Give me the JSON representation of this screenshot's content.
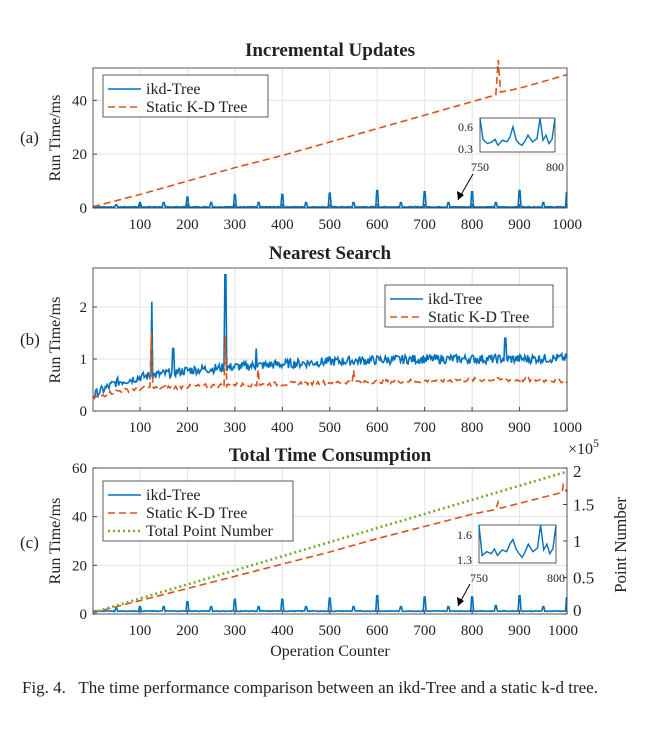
{
  "figure": {
    "caption_label": "Fig. 4.",
    "caption_text": "The time performance comparison between an ikd-Tree and a static k-d tree.",
    "xlabel": "Operation Counter"
  },
  "colors": {
    "ikd": "#0072BD",
    "static": "#D95319",
    "points": "#77AC30"
  },
  "chart_data": [
    {
      "type": "line",
      "panel": "(a)",
      "title": "Incremental Updates",
      "ylabel": "Run Time/ms",
      "xlim": [
        1,
        1000
      ],
      "ylim": [
        0,
        52
      ],
      "xticks": [
        100,
        200,
        300,
        400,
        500,
        600,
        700,
        800,
        900,
        1000
      ],
      "yticks": [
        0,
        20,
        40
      ],
      "grid": true,
      "legend": "top-left",
      "series": [
        {
          "name": "ikd-Tree",
          "style": "solid",
          "color": "#0072BD",
          "baseline": 0.4,
          "spikes": [
            [
              50,
              1.2
            ],
            [
              100,
              2
            ],
            [
              150,
              2
            ],
            [
              200,
              4
            ],
            [
              250,
              2
            ],
            [
              300,
              5
            ],
            [
              350,
              2
            ],
            [
              400,
              5
            ],
            [
              450,
              2
            ],
            [
              500,
              5.5
            ],
            [
              550,
              2
            ],
            [
              600,
              6.5
            ],
            [
              650,
              2
            ],
            [
              700,
              6
            ],
            [
              750,
              2
            ],
            [
              800,
              6
            ],
            [
              850,
              2
            ],
            [
              900,
              6.5
            ],
            [
              950,
              2
            ],
            [
              1000,
              6
            ]
          ]
        },
        {
          "name": "Static K-D Tree",
          "style": "dashed",
          "color": "#D95319",
          "x": [
            1,
            100,
            200,
            300,
            400,
            500,
            600,
            700,
            800,
            850,
            855,
            860,
            900,
            1000
          ],
          "y": [
            0.5,
            5,
            10,
            15,
            19.5,
            24.5,
            29.5,
            34.5,
            39.5,
            42,
            55,
            43,
            44.5,
            49.5
          ]
        }
      ],
      "inset": {
        "xlim": [
          750,
          800
        ],
        "yticks": [
          0.3,
          0.6
        ],
        "xticks": [
          750,
          800
        ],
        "x": [
          750,
          752,
          755,
          758,
          760,
          762,
          765,
          768,
          770,
          772,
          774,
          776,
          778,
          780,
          782,
          785,
          788,
          790,
          792,
          794,
          796,
          798,
          800
        ],
        "y": [
          0.7,
          0.45,
          0.4,
          0.42,
          0.45,
          0.38,
          0.44,
          0.42,
          0.48,
          0.6,
          0.45,
          0.4,
          0.38,
          0.43,
          0.5,
          0.42,
          0.46,
          0.7,
          0.44,
          0.5,
          0.4,
          0.45,
          0.7
        ]
      }
    },
    {
      "type": "line",
      "panel": "(b)",
      "title": "Nearest Search",
      "ylabel": "Run Time/ms",
      "xlim": [
        1,
        1000
      ],
      "ylim": [
        0,
        2.75
      ],
      "xticks": [
        100,
        200,
        300,
        400,
        500,
        600,
        700,
        800,
        900,
        1000
      ],
      "yticks": [
        0,
        1,
        2
      ],
      "grid": true,
      "legend": "top-right",
      "series": [
        {
          "name": "ikd-Tree",
          "style": "solid",
          "color": "#0072BD",
          "x": [
            1,
            50,
            100,
            200,
            300,
            400,
            500,
            600,
            700,
            800,
            900,
            1000
          ],
          "y": [
            0.3,
            0.55,
            0.65,
            0.78,
            0.85,
            0.9,
            0.95,
            0.98,
            1.0,
            1.0,
            1.0,
            1.02
          ],
          "spikes": [
            [
              125,
              2.1
            ],
            [
              280,
              2.62
            ],
            [
              870,
              1.4
            ],
            [
              345,
              1.2
            ],
            [
              170,
              1.2
            ]
          ]
        },
        {
          "name": "Static K-D Tree",
          "style": "dashed",
          "color": "#D95319",
          "x": [
            1,
            50,
            100,
            200,
            300,
            400,
            500,
            600,
            700,
            800,
            900,
            1000
          ],
          "y": [
            0.25,
            0.38,
            0.43,
            0.47,
            0.5,
            0.52,
            0.55,
            0.57,
            0.58,
            0.6,
            0.6,
            0.58
          ],
          "spikes": [
            [
              125,
              1.5
            ],
            [
              280,
              1.45
            ],
            [
              350,
              0.8
            ],
            [
              550,
              0.78
            ]
          ]
        }
      ]
    },
    {
      "type": "line",
      "panel": "(c)",
      "title": "Total Time Consumption",
      "ylabel": "Run Time/ms",
      "y2label": "Point Number",
      "y2_exponent": "×10",
      "y2_exponent_power": "5",
      "xlabel": "Operation Counter",
      "xlim": [
        1,
        1000
      ],
      "ylim": [
        0,
        60
      ],
      "y2lim": [
        0,
        2
      ],
      "xticks": [
        100,
        200,
        300,
        400,
        500,
        600,
        700,
        800,
        900,
        1000
      ],
      "yticks": [
        0,
        20,
        40,
        60
      ],
      "y2ticks": [
        0,
        0.5,
        1,
        1.5,
        2
      ],
      "grid": true,
      "legend": "top-left",
      "series": [
        {
          "name": "ikd-Tree",
          "style": "solid",
          "color": "#0072BD",
          "baseline": 1.2,
          "spikes": [
            [
              50,
              2.5
            ],
            [
              100,
              3
            ],
            [
              150,
              3
            ],
            [
              200,
              5
            ],
            [
              250,
              3
            ],
            [
              300,
              6
            ],
            [
              350,
              3
            ],
            [
              400,
              6
            ],
            [
              450,
              3
            ],
            [
              500,
              6.5
            ],
            [
              550,
              3
            ],
            [
              600,
              7.5
            ],
            [
              650,
              3
            ],
            [
              700,
              7
            ],
            [
              750,
              3
            ],
            [
              800,
              7
            ],
            [
              850,
              3.5
            ],
            [
              900,
              7.5
            ],
            [
              950,
              3
            ],
            [
              1000,
              7
            ]
          ]
        },
        {
          "name": "Static K-D Tree",
          "style": "dashed",
          "color": "#D95319",
          "x": [
            1,
            100,
            200,
            300,
            400,
            500,
            600,
            700,
            800,
            850,
            855,
            860,
            900,
            990,
            992,
            1000
          ],
          "y": [
            0.5,
            5.5,
            10.5,
            15.5,
            20.5,
            25.5,
            31,
            36,
            41,
            43,
            46,
            43.5,
            45.5,
            50,
            53,
            50
          ]
        },
        {
          "name": "Total Point Number",
          "style": "dotted",
          "color": "#77AC30",
          "axis": "right",
          "x": [
            1,
            1000
          ],
          "y": [
            0.02,
            1.95
          ]
        }
      ],
      "inset": {
        "xlim": [
          750,
          800
        ],
        "yticks": [
          1.3,
          1.6
        ],
        "xticks": [
          750,
          800
        ],
        "x": [
          750,
          752,
          755,
          758,
          760,
          762,
          765,
          768,
          770,
          772,
          774,
          776,
          778,
          780,
          782,
          785,
          788,
          790,
          792,
          794,
          796,
          798,
          800
        ],
        "y": [
          1.8,
          1.38,
          1.42,
          1.4,
          1.45,
          1.38,
          1.44,
          1.42,
          1.5,
          1.55,
          1.45,
          1.4,
          1.36,
          1.42,
          1.5,
          1.42,
          1.46,
          1.8,
          1.44,
          1.5,
          1.4,
          1.45,
          1.8
        ]
      }
    }
  ]
}
